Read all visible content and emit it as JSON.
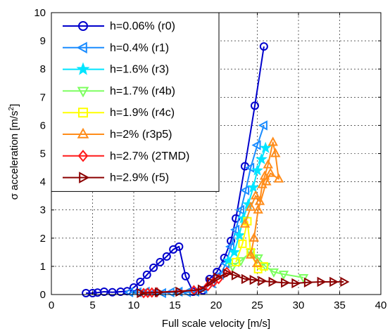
{
  "chart_data": {
    "type": "line",
    "xlabel": "Full scale velocity [m/s]",
    "ylabel_main": "σ acceleration [m/s",
    "ylabel_sup": "2",
    "ylabel_end": "]",
    "xlim": [
      0,
      40
    ],
    "ylim": [
      0,
      10
    ],
    "x_ticks": [
      "0",
      "5",
      "10",
      "15",
      "20",
      "25",
      "30",
      "35",
      "40"
    ],
    "y_ticks": [
      "0",
      "1",
      "2",
      "3",
      "4",
      "5",
      "6",
      "7",
      "8",
      "9",
      "10"
    ],
    "grid": "dashed",
    "legend_position": "top-left",
    "series": [
      {
        "name": "h=0.06% (r0)",
        "color": "#0000cc",
        "marker": "circle",
        "points": [
          [
            4.2,
            0.05
          ],
          [
            5,
            0.05
          ],
          [
            5.6,
            0.07
          ],
          [
            6.4,
            0.1
          ],
          [
            7.4,
            0.08
          ],
          [
            8.4,
            0.1
          ],
          [
            9.2,
            0.12
          ],
          [
            10,
            0.25
          ],
          [
            10.8,
            0.45
          ],
          [
            11.6,
            0.7
          ],
          [
            12.4,
            0.95
          ],
          [
            13.2,
            1.15
          ],
          [
            14,
            1.35
          ],
          [
            14.8,
            1.6
          ],
          [
            15.5,
            1.7
          ],
          [
            16.3,
            0.65
          ],
          [
            17.2,
            0.1
          ],
          [
            18.4,
            0.15
          ],
          [
            19.2,
            0.55
          ],
          [
            20.1,
            0.8
          ],
          [
            21,
            1.3
          ],
          [
            21.8,
            1.9
          ],
          [
            22.4,
            2.7
          ],
          [
            23.5,
            4.55
          ],
          [
            24.7,
            6.7
          ],
          [
            25.8,
            8.8
          ]
        ]
      },
      {
        "name": "h=0.4% (r1)",
        "color": "#1a8cff",
        "marker": "triangle-left",
        "points": [
          [
            9.5,
            0.08
          ],
          [
            10.5,
            0.08
          ],
          [
            11.5,
            0.1
          ],
          [
            12.5,
            0.08
          ],
          [
            13.5,
            0.05
          ],
          [
            14.5,
            0.08
          ],
          [
            15.5,
            0.1
          ],
          [
            16.5,
            0.08
          ],
          [
            17.5,
            0.1
          ],
          [
            18.5,
            0.2
          ],
          [
            19.5,
            0.4
          ],
          [
            20.5,
            0.7
          ],
          [
            21.2,
            1.1
          ],
          [
            21.8,
            1.7
          ],
          [
            22.4,
            2.3
          ],
          [
            23,
            3.0
          ],
          [
            23.6,
            3.7
          ],
          [
            24.2,
            4.5
          ],
          [
            25,
            5.3
          ],
          [
            25.8,
            6.0
          ]
        ]
      },
      {
        "name": "h=1.6% (r3)",
        "color": "#00e5ff",
        "marker": "star",
        "points": [
          [
            21.5,
            1.2
          ],
          [
            22.2,
            1.5
          ],
          [
            22.8,
            2.1
          ],
          [
            23.3,
            2.7
          ],
          [
            23.9,
            3.2
          ],
          [
            24.5,
            3.8
          ],
          [
            25,
            4.4
          ],
          [
            25.5,
            4.8
          ],
          [
            26,
            5.2
          ]
        ]
      },
      {
        "name": "h=1.7% (r4b)",
        "color": "#7cff5f",
        "marker": "triangle-down",
        "points": [
          [
            22,
            1.0
          ],
          [
            23,
            1.2
          ],
          [
            24.2,
            1.5
          ],
          [
            25.1,
            1.3
          ],
          [
            26,
            1.0
          ],
          [
            27,
            0.8
          ],
          [
            28.2,
            0.72
          ],
          [
            30.6,
            0.6
          ]
        ]
      },
      {
        "name": "h=1.9% (r4c)",
        "color": "#ffff00",
        "marker": "square",
        "points": [
          [
            22.4,
            1.15
          ],
          [
            23.2,
            1.8
          ],
          [
            23.8,
            2.6
          ],
          [
            24.2,
            1.5
          ],
          [
            25.1,
            0.9
          ],
          [
            25.8,
            1.0
          ]
        ]
      },
      {
        "name": "h=2% (r3p5)",
        "color": "#ff8c1a",
        "marker": "triangle-up",
        "points": [
          [
            23.5,
            2.5
          ],
          [
            24.2,
            3.1
          ],
          [
            24.8,
            3.5
          ],
          [
            25.3,
            3.3
          ],
          [
            25.6,
            3.9
          ],
          [
            25.9,
            4.2
          ],
          [
            26.3,
            4.6
          ],
          [
            26.9,
            5.4
          ],
          [
            27.2,
            5.0
          ],
          [
            27.6,
            4.1
          ],
          [
            26.6,
            4.3
          ],
          [
            26.1,
            4.0
          ],
          [
            25.1,
            3.0
          ],
          [
            24.6,
            2.0
          ],
          [
            24.2,
            1.4
          ],
          [
            25,
            1.1
          ]
        ]
      },
      {
        "name": "h=2.7% (2TMD)",
        "color": "#ff1a1a",
        "marker": "diamond",
        "points": [
          [
            11.2,
            0.05
          ],
          [
            11.7,
            0.06
          ],
          [
            12.2,
            0.07
          ],
          [
            12.8,
            0.08
          ],
          [
            17.3,
            0.15
          ],
          [
            19,
            0.3
          ],
          [
            19.7,
            0.45
          ],
          [
            20.3,
            0.55
          ],
          [
            21.3,
            0.8
          ]
        ]
      },
      {
        "name": "h=2.9% (r5)",
        "color": "#8b0000",
        "marker": "triangle-right",
        "points": [
          [
            10.8,
            0.05
          ],
          [
            13,
            0.08
          ],
          [
            15.5,
            0.1
          ],
          [
            18.2,
            0.18
          ],
          [
            19.3,
            0.45
          ],
          [
            20.1,
            0.6
          ],
          [
            21.3,
            0.75
          ],
          [
            22.3,
            0.68
          ],
          [
            23.5,
            0.55
          ],
          [
            24.5,
            0.52
          ],
          [
            25.5,
            0.48
          ],
          [
            26.8,
            0.45
          ],
          [
            28.3,
            0.42
          ],
          [
            29.6,
            0.4
          ],
          [
            31.1,
            0.43
          ],
          [
            32.7,
            0.45
          ],
          [
            34.2,
            0.45
          ],
          [
            35.5,
            0.45
          ]
        ]
      }
    ]
  }
}
